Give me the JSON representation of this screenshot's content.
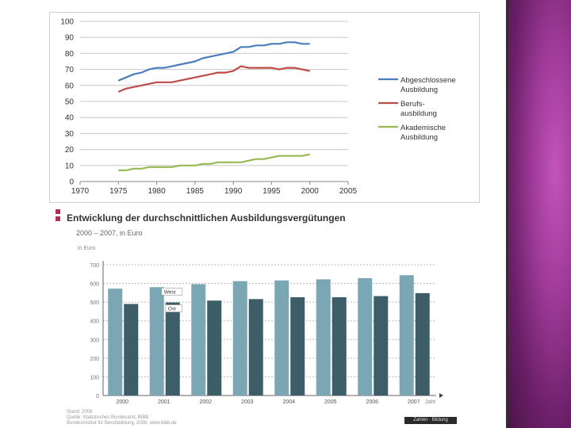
{
  "colors": {
    "blue": "#4a7ebb",
    "red": "#be4b48",
    "green": "#98b954",
    "bar_light": "#7ba7b4",
    "bar_dark": "#3d5e68"
  },
  "chart_data": [
    {
      "type": "line",
      "title": "",
      "xlabel": "",
      "ylabel": "",
      "xlim": [
        1970,
        2005
      ],
      "ylim": [
        0,
        100
      ],
      "x_ticks": [
        "1970",
        "1975",
        "1980",
        "1985",
        "1990",
        "1995",
        "2000",
        "2005"
      ],
      "y_ticks": [
        "0",
        "10",
        "20",
        "30",
        "40",
        "50",
        "60",
        "70",
        "80",
        "90",
        "100"
      ],
      "x": [
        1975,
        1976,
        1977,
        1978,
        1979,
        1980,
        1981,
        1982,
        1983,
        1984,
        1985,
        1986,
        1987,
        1988,
        1989,
        1990,
        1991,
        1992,
        1993,
        1994,
        1995,
        1996,
        1997,
        1998,
        1999,
        2000
      ],
      "series": [
        {
          "name": "Abgeschlossene Ausbildung",
          "legend_lines": [
            "Abgeschlossene",
            "Ausbildung"
          ],
          "color": "#4a7ebb",
          "values": [
            63,
            65,
            67,
            68,
            70,
            71,
            71,
            72,
            73,
            74,
            75,
            77,
            78,
            79,
            80,
            81,
            84,
            84,
            85,
            85,
            86,
            86,
            87,
            87,
            86,
            86
          ]
        },
        {
          "name": "Berufsausbildung",
          "legend_lines": [
            "Berufs-",
            "ausbildung"
          ],
          "color": "#be4b48",
          "values": [
            56,
            58,
            59,
            60,
            61,
            62,
            62,
            62,
            63,
            64,
            65,
            66,
            67,
            68,
            68,
            69,
            72,
            71,
            71,
            71,
            71,
            70,
            71,
            71,
            70,
            69
          ]
        },
        {
          "name": "Akademische Ausbildung",
          "legend_lines": [
            "Akademische",
            "Ausbildung"
          ],
          "color": "#98b954",
          "values": [
            7,
            7,
            8,
            8,
            9,
            9,
            9,
            9,
            10,
            10,
            10,
            11,
            11,
            12,
            12,
            12,
            12,
            13,
            14,
            14,
            15,
            16,
            16,
            16,
            16,
            17
          ]
        }
      ]
    },
    {
      "type": "bar",
      "title": "Entwicklung der durchschnittlichen Ausbildungsvergütungen",
      "subtitle": "2000 – 2007, in Euro",
      "ylabel": "in Euro",
      "xlabel": "Jahr",
      "ylim": [
        0,
        700
      ],
      "y_ticks": [
        "0",
        "100",
        "200",
        "300",
        "400",
        "500",
        "600",
        "700"
      ],
      "categories": [
        "2000",
        "2001",
        "2002",
        "2003",
        "2004",
        "2005",
        "2006",
        "2007"
      ],
      "series": [
        {
          "name": "West",
          "color": "#7ba7b4",
          "values": [
            572,
            580,
            596,
            612,
            616,
            622,
            628,
            644
          ]
        },
        {
          "name": "Ost",
          "color": "#3d5e68",
          "values": [
            490,
            498,
            508,
            516,
            526,
            526,
            532,
            548
          ]
        }
      ],
      "annotations": [
        "West",
        "Ost"
      ]
    }
  ],
  "footer": {
    "source_lines": [
      "Stand: 2008",
      "Quelle: Statistisches Bundesamt, BIBB",
      "Bundesinstitut für Berufsbildung, 2008, www.bibb.de"
    ],
    "badge": "Zahlen · Bildung"
  }
}
